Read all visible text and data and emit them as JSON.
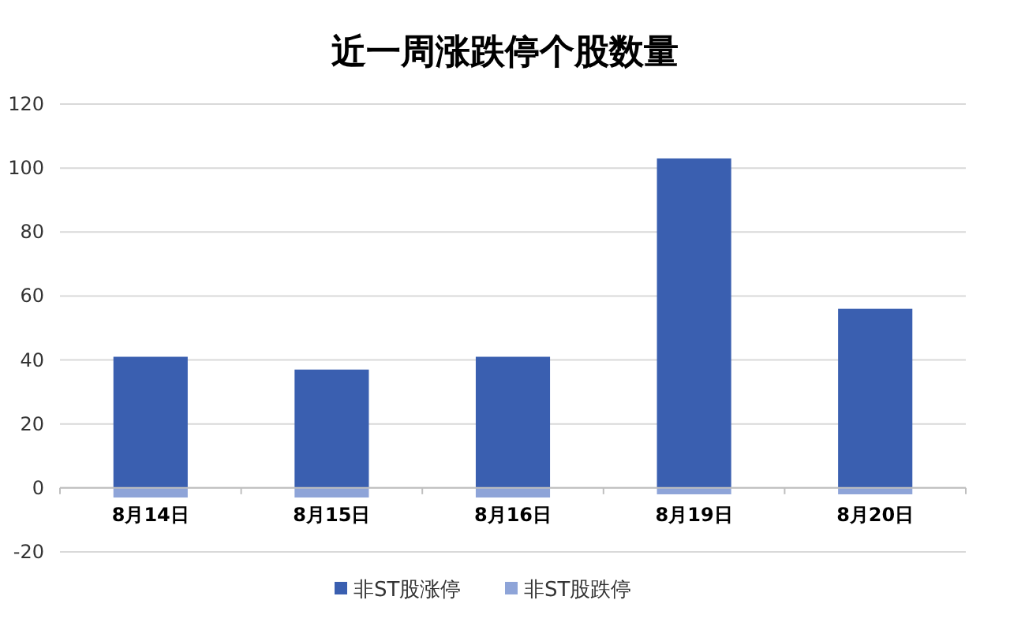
{
  "chart_data": {
    "type": "bar",
    "title": "近一周涨跌停个股数量",
    "categories": [
      "8月14日",
      "8月15日",
      "8月16日",
      "8月19日",
      "8月20日"
    ],
    "series": [
      {
        "name": "非ST股涨停",
        "color": "#3a5fb0",
        "values": [
          41,
          37,
          41,
          103,
          56
        ]
      },
      {
        "name": "非ST股跌停",
        "color": "#8ea4d8",
        "values": [
          -3,
          -3,
          -3,
          -2,
          -2
        ]
      }
    ],
    "stacked": true,
    "ylim": [
      -20,
      120
    ],
    "yticks": [
      -20,
      0,
      20,
      40,
      60,
      80,
      100,
      120
    ],
    "grid": "y",
    "legend": "bottom"
  }
}
